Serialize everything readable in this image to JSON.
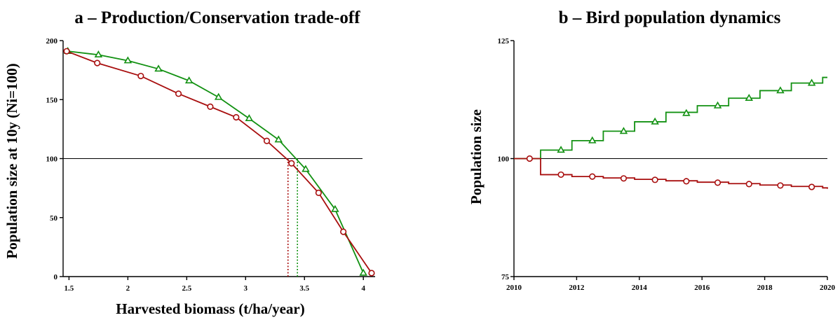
{
  "chart_data": [
    {
      "type": "line",
      "title": "a – Production/Conservation trade-off",
      "xlabel": "Harvested biomass (t/ha/year)",
      "ylabel": "Population size at 10y (Ni=100)",
      "xlim": [
        1.45,
        4.1
      ],
      "ylim": [
        0,
        200
      ],
      "x_ticks": [
        1.5,
        2,
        2.5,
        3,
        3.5,
        4
      ],
      "x_tick_labels": [
        "1.5",
        "2",
        "2.5",
        "3",
        "3.5",
        "4"
      ],
      "y_ticks": [
        0,
        50,
        100,
        150,
        200
      ],
      "y_tick_labels": [
        "0",
        "50",
        "100",
        "150",
        "200"
      ],
      "reference_line_y": 100,
      "grid": false,
      "series": [
        {
          "marker": "triangle",
          "color": "#129112",
          "x": [
            1.49,
            1.75,
            2.0,
            2.26,
            2.52,
            2.77,
            3.03,
            3.28,
            3.51,
            3.76,
            4.0
          ],
          "y": [
            191,
            188,
            183,
            176,
            166,
            152,
            134,
            116,
            91,
            57,
            3
          ],
          "threshold_x": 3.44
        },
        {
          "marker": "circle",
          "color": "#a80e0e",
          "x": [
            1.48,
            1.74,
            2.11,
            2.43,
            2.7,
            2.92,
            3.18,
            3.39,
            3.62,
            3.83,
            4.07
          ],
          "y": [
            191,
            181,
            170,
            155,
            144,
            135,
            115,
            96,
            71,
            38,
            3
          ],
          "threshold_x": 3.36
        }
      ]
    },
    {
      "type": "line",
      "title": "b – Bird population dynamics",
      "xlabel": "",
      "ylabel": "Population size",
      "xlim": [
        2010,
        2020
      ],
      "ylim": [
        75,
        125
      ],
      "x_ticks": [
        2010,
        2012,
        2014,
        2016,
        2018,
        2020
      ],
      "x_tick_labels": [
        "2010",
        "2012",
        "2014",
        "2016",
        "2018",
        "2020"
      ],
      "y_ticks": [
        75,
        100,
        125
      ],
      "y_tick_labels": [
        "75",
        "100",
        "125"
      ],
      "reference_line_y": 100,
      "grid": false,
      "series": [
        {
          "marker": "triangle",
          "color": "#129112",
          "step_x": [
            2010,
            2010.85,
            2011.85,
            2012.85,
            2013.85,
            2014.85,
            2015.85,
            2016.85,
            2017.85,
            2018.85,
            2019.85,
            2020
          ],
          "step_y": [
            100,
            101.8,
            103.8,
            105.8,
            107.8,
            109.8,
            111.2,
            112.8,
            114.4,
            116.0,
            117.2,
            117.2
          ],
          "marker_x": [
            2011.5,
            2012.5,
            2013.5,
            2014.5,
            2015.5,
            2016.5,
            2017.5,
            2018.5,
            2019.5
          ],
          "marker_y": [
            101.8,
            103.8,
            105.8,
            107.8,
            109.6,
            111.2,
            112.8,
            114.4,
            116.0
          ]
        },
        {
          "marker": "circle",
          "color": "#a80e0e",
          "step_x": [
            2010,
            2010.85,
            2011.85,
            2012.85,
            2013.85,
            2014.85,
            2015.85,
            2016.85,
            2017.85,
            2018.85,
            2019.85,
            2020
          ],
          "step_y": [
            100,
            96.6,
            96.2,
            95.9,
            95.6,
            95.3,
            95.0,
            94.7,
            94.4,
            94.1,
            93.8,
            93.6
          ],
          "marker_x": [
            2010.5,
            2011.5,
            2012.5,
            2013.5,
            2014.5,
            2015.5,
            2016.5,
            2017.5,
            2018.5,
            2019.5
          ],
          "marker_y": [
            100,
            96.6,
            96.2,
            95.8,
            95.5,
            95.2,
            94.9,
            94.6,
            94.3,
            94.0
          ]
        }
      ]
    }
  ]
}
